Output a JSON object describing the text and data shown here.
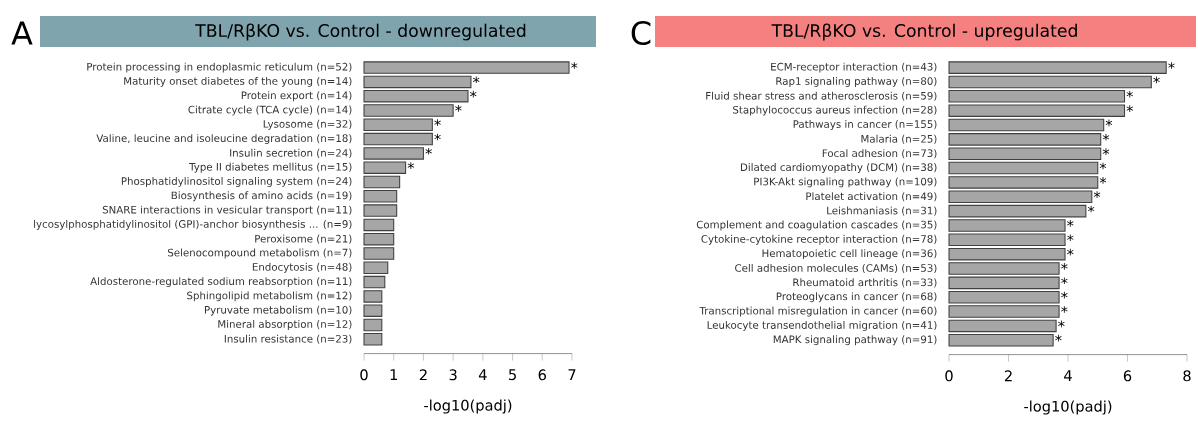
{
  "chart_data": [
    {
      "type": "bar",
      "orientation": "horizontal",
      "title": "TBL/RβKO vs. Control - downregulated",
      "xlabel": "-log10(padj)",
      "annotations": [
        "A"
      ],
      "color": "#a6a6a6",
      "categories": [
        "Protein processing in endoplasmic reticulum (n=52)",
        "Maturity onset diabetes of the young (n=14)",
        "Protein export (n=14)",
        "Citrate cycle (TCA cycle) (n=14)",
        "Lysosome (n=32)",
        "Valine, leucine and isoleucine degradation (n=18)",
        "Insulin secretion (n=24)",
        "Type II diabetes mellitus (n=15)",
        "Phosphatidylinositol signaling system (n=24)",
        "Biosynthesis of amino acids (n=19)",
        "SNARE interactions in vesicular transport (n=11)",
        "lycosylphosphatidylinositol (GPI)-anchor biosynthesis ... (n=9)",
        "Peroxisome (n=21)",
        "Selenocompound metabolism (n=7)",
        "Endocytosis (n=48)",
        "Aldosterone-regulated sodium reabsorption (n=11)",
        "Sphingolipid metabolism (n=12)",
        "Pyruvate metabolism (n=10)",
        "Mineral absorption (n=12)",
        "Insulin resistance (n=23)"
      ],
      "values": [
        6.9,
        3.6,
        3.5,
        3.0,
        2.3,
        2.3,
        2.0,
        1.4,
        1.2,
        1.1,
        1.1,
        1.0,
        1.0,
        1.0,
        0.8,
        0.7,
        0.6,
        0.6,
        0.6,
        0.6
      ],
      "value_labels": [
        "*",
        "*",
        "*",
        "*",
        "*",
        "*",
        "*",
        "*",
        null,
        null,
        null,
        null,
        null,
        null,
        null,
        null,
        null,
        null,
        null,
        null
      ],
      "xlim": [
        0,
        7
      ],
      "xticks": [
        0,
        1,
        2,
        3,
        4,
        5,
        6,
        7
      ]
    },
    {
      "type": "bar",
      "orientation": "horizontal",
      "title": "TBL/RβKO vs. Control - upregulated",
      "xlabel": "-log10(padj)",
      "annotations": [
        "C"
      ],
      "color": "#a6a6a6",
      "categories": [
        "ECM-receptor interaction (n=43)",
        "Rap1 signaling pathway (n=80)",
        "Fluid shear stress and atherosclerosis (n=59)",
        "Staphylococcus aureus infection (n=28)",
        "Pathways in cancer (n=155)",
        "Malaria (n=25)",
        "Focal adhesion (n=73)",
        "Dilated cardiomyopathy (DCM) (n=38)",
        "PI3K-Akt signaling pathway (n=109)",
        "Platelet activation (n=49)",
        "Leishmaniasis (n=31)",
        "Complement and coagulation cascades (n=35)",
        "Cytokine-cytokine receptor interaction (n=78)",
        "Hematopoietic cell lineage (n=36)",
        "Cell adhesion molecules (CAMs) (n=53)",
        "Rheumatoid arthritis (n=33)",
        "Proteoglycans in cancer (n=68)",
        "Transcriptional misregulation in cancer (n=60)",
        "Leukocyte transendothelial migration (n=41)",
        "MAPK signaling pathway (n=91)"
      ],
      "values": [
        7.3,
        6.8,
        5.9,
        5.9,
        5.2,
        5.1,
        5.1,
        5.0,
        5.0,
        4.8,
        4.6,
        3.9,
        3.9,
        3.9,
        3.7,
        3.7,
        3.7,
        3.7,
        3.6,
        3.5
      ],
      "value_labels": [
        "*",
        "*",
        "*",
        "*",
        "*",
        "*",
        "*",
        "*",
        "*",
        "*",
        "*",
        "*",
        "*",
        "*",
        "*",
        "*",
        "*",
        "*",
        "*",
        "*"
      ],
      "xlim": [
        0,
        8
      ],
      "xticks": [
        0,
        2,
        4,
        6,
        8
      ]
    }
  ]
}
